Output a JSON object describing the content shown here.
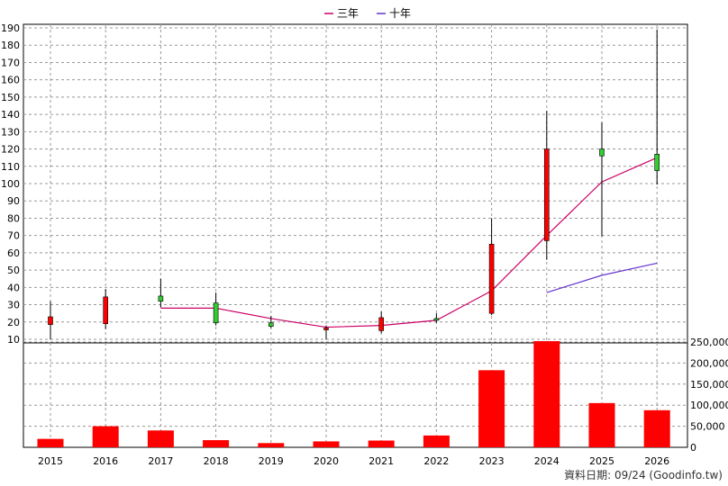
{
  "legend": [
    {
      "label": "三年",
      "color": "#cc0066"
    },
    {
      "label": "十年",
      "color": "#6633cc"
    }
  ],
  "footer": {
    "text": "資料日期: 09/24 (Goodinfo.tw)"
  },
  "colors": {
    "up": "#ff0000",
    "down": "#33cc33",
    "wick": "#000000",
    "volume": "#ff0000",
    "ma3": "#cc0066",
    "ma10": "#6633cc",
    "grid": "#999999"
  },
  "chart_data": {
    "type": "candlestick",
    "categories": [
      "2015",
      "2016",
      "2017",
      "2018",
      "2019",
      "2020",
      "2021",
      "2022",
      "2023",
      "2024",
      "2025",
      "2026"
    ],
    "price_axis": {
      "ylim": [
        0,
        190
      ],
      "ticks": [
        10,
        20,
        30,
        40,
        50,
        60,
        70,
        80,
        90,
        100,
        110,
        120,
        130,
        140,
        150,
        160,
        170,
        180,
        190
      ]
    },
    "volume_axis": {
      "ylim": [
        0,
        250000
      ],
      "ticks": [
        0,
        50000,
        100000,
        150000,
        200000,
        250000
      ],
      "tick_labels": [
        "0",
        "50,000",
        "100,000",
        "150,000",
        "200,000",
        "250,000"
      ]
    },
    "ohlc": [
      {
        "open": 18.5,
        "close": 23.0,
        "high": 32.0,
        "low": 10.0
      },
      {
        "open": 19.0,
        "close": 34.5,
        "high": 39.0,
        "low": 16.0
      },
      {
        "open": 35.0,
        "close": 32.0,
        "high": 45.0,
        "low": 28.5
      },
      {
        "open": 31.0,
        "close": 19.5,
        "high": 37.0,
        "low": 18.0
      },
      {
        "open": 19.5,
        "close": 17.5,
        "high": 23.5,
        "low": 16.5
      },
      {
        "open": 16.5,
        "close": 16.5,
        "high": 18.0,
        "low": 10.0
      },
      {
        "open": 15.0,
        "close": 22.5,
        "high": 26.0,
        "low": 13.5
      },
      {
        "open": 22.0,
        "close": 21.5,
        "high": 25.0,
        "low": 19.5
      },
      {
        "open": 25.0,
        "close": 65.0,
        "high": 80.0,
        "low": 24.0
      },
      {
        "open": 67.0,
        "close": 120.0,
        "high": 142.0,
        "low": 56.0
      },
      {
        "open": 120.0,
        "close": 116.0,
        "high": 135.5,
        "low": 69.5
      },
      {
        "open": 117.0,
        "close": 107.5,
        "high": 189.0,
        "low": 99.5
      }
    ],
    "series": [
      {
        "name": "三年",
        "values": [
          null,
          null,
          28,
          28,
          22,
          17,
          18,
          21,
          38,
          70,
          101,
          115
        ]
      },
      {
        "name": "十年",
        "values": [
          null,
          null,
          null,
          null,
          null,
          null,
          null,
          null,
          null,
          37,
          47,
          54
        ]
      }
    ],
    "volume": [
      20000,
      50000,
      40000,
      17000,
      10000,
      14000,
      16000,
      28000,
      183000,
      252000,
      105000,
      88000
    ],
    "grid": true,
    "legend_position": "top-center"
  }
}
